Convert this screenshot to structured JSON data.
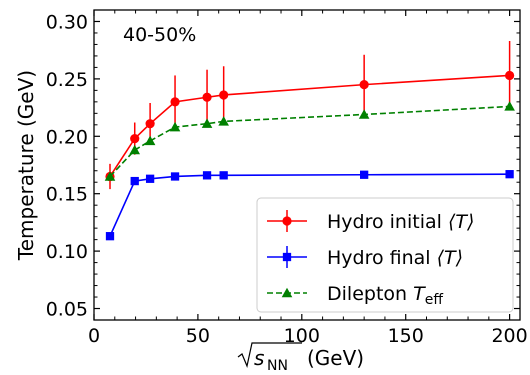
{
  "chart_data": {
    "type": "line",
    "title": "",
    "annotation": "40-50%",
    "xlabel_sqrt": "s",
    "xlabel_sub": "NN",
    "xlabel_unit": "(GeV)",
    "ylabel": "Temperature (GeV)",
    "xlim": [
      0,
      205
    ],
    "ylim": [
      0.04,
      0.31
    ],
    "xticks": [
      0,
      50,
      100,
      150,
      200
    ],
    "yticks": [
      0.05,
      0.1,
      0.15,
      0.2,
      0.25,
      0.3
    ],
    "xtick_labels": [
      "0",
      "50",
      "100",
      "150",
      "200"
    ],
    "ytick_labels": [
      "0.05",
      "0.10",
      "0.15",
      "0.20",
      "0.25",
      "0.30"
    ],
    "grid": false,
    "legend_position": "lower-right",
    "series": [
      {
        "name_prefix": "Hydro initial ",
        "name_math": "⟨T⟩",
        "color": "#ff0000",
        "marker": "circle",
        "linestyle": "solid",
        "x": [
          7.7,
          19.6,
          27,
          39,
          54.4,
          62.4,
          130,
          200
        ],
        "y": [
          0.165,
          0.198,
          0.211,
          0.23,
          0.234,
          0.236,
          0.245,
          0.253
        ],
        "err": [
          0.011,
          0.014,
          0.018,
          0.023,
          0.024,
          0.025,
          0.026,
          0.03
        ]
      },
      {
        "name_prefix": "Hydro final ",
        "name_math": "⟨T⟩",
        "color": "#0000ff",
        "marker": "square",
        "linestyle": "solid",
        "x": [
          7.7,
          19.6,
          27,
          39,
          54.4,
          62.4,
          130,
          200
        ],
        "y": [
          0.113,
          0.161,
          0.163,
          0.165,
          0.166,
          0.166,
          0.1665,
          0.167
        ],
        "err": [
          0.001,
          0.001,
          0.001,
          0.001,
          0.001,
          0.001,
          0.001,
          0.001
        ]
      },
      {
        "name_prefix": "Dilepton ",
        "name_math": "T",
        "name_sub": "eff",
        "color": "#008000",
        "marker": "triangle",
        "linestyle": "dashed",
        "x": [
          7.7,
          19.6,
          27,
          39,
          54.4,
          62.4,
          130,
          200
        ],
        "y": [
          0.165,
          0.188,
          0.196,
          0.208,
          0.211,
          0.213,
          0.219,
          0.226
        ],
        "err": []
      }
    ]
  }
}
